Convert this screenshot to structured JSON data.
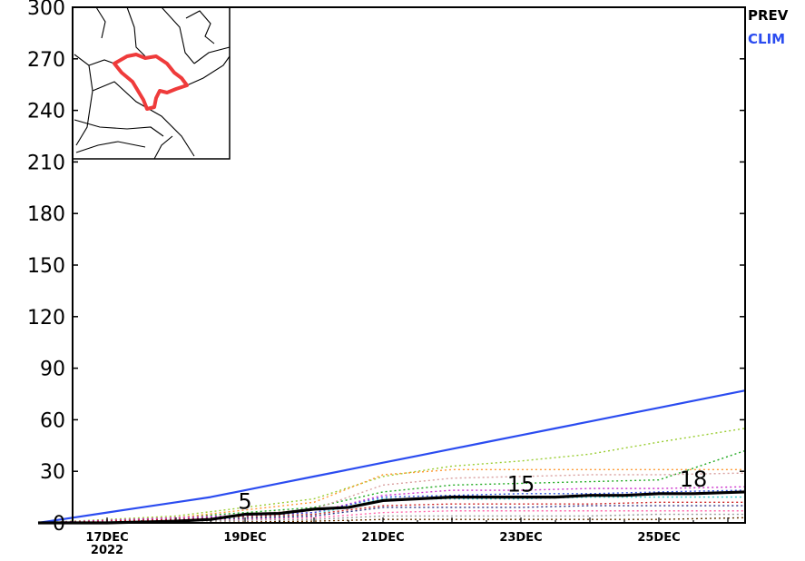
{
  "chart_data": {
    "type": "line",
    "title": "",
    "xlabel": "",
    "ylabel": "",
    "ylim": [
      0,
      300
    ],
    "yticks": [
      0,
      30,
      60,
      90,
      120,
      150,
      180,
      210,
      240,
      270,
      300
    ],
    "x_range": [
      "16DEC 12Z",
      "26DEC 06Z"
    ],
    "x_tick_labels": [
      {
        "x": "17DEC",
        "label": "17DEC",
        "sublabel": "2022"
      },
      {
        "x": "19DEC",
        "label": "19DEC"
      },
      {
        "x": "21DEC",
        "label": "21DEC"
      },
      {
        "x": "23DEC",
        "label": "23DEC"
      },
      {
        "x": "25DEC",
        "label": "25DEC"
      }
    ],
    "legend": {
      "placement": "top-right",
      "entries": [
        {
          "label": "PREV",
          "color": "#000000"
        },
        {
          "label": "CLIM",
          "color": "#2b4cf0"
        }
      ]
    },
    "inset_map": {
      "placement": "top-left",
      "highlight_color": "#ef3b3b",
      "description_region": "basin outline"
    },
    "series": [
      {
        "name": "PREV",
        "color": "#000000",
        "style": "solid",
        "x": [
          "16DEC",
          "17DEC",
          "17DEC 12Z",
          "18DEC",
          "18DEC 12Z",
          "19DEC",
          "19DEC 12Z",
          "20DEC",
          "20DEC 12Z",
          "21DEC",
          "21DEC 12Z",
          "22DEC",
          "22DEC 12Z",
          "23DEC",
          "23DEC 12Z",
          "24DEC",
          "24DEC 12Z",
          "25DEC",
          "25DEC 12Z",
          "26DEC 06Z"
        ],
        "values": [
          0,
          0,
          0.5,
          1,
          2,
          5,
          5.5,
          8,
          9,
          13,
          14,
          15,
          15,
          15,
          15,
          16,
          16,
          17,
          17,
          18
        ]
      },
      {
        "name": "CLIM",
        "color": "#2b4cf0",
        "style": "solid",
        "x": [
          "16DEC",
          "16DEC 12Z",
          "17DEC",
          "17DEC 12Z",
          "18DEC",
          "18DEC 12Z",
          "19DEC",
          "19DEC 12Z",
          "20DEC",
          "20DEC 12Z",
          "21DEC",
          "21DEC 12Z",
          "22DEC",
          "22DEC 12Z",
          "23DEC",
          "23DEC 12Z",
          "24DEC",
          "24DEC 12Z",
          "25DEC",
          "25DEC 12Z",
          "26DEC 06Z"
        ],
        "values": [
          0,
          3,
          6,
          9,
          12,
          15,
          19,
          23,
          27,
          31,
          35,
          39,
          43,
          47,
          51,
          55,
          59,
          63,
          67,
          71,
          77
        ]
      }
    ],
    "ensemble_members": [
      {
        "color": "#9acd32",
        "x": [
          "16DEC",
          "18DEC",
          "20DEC",
          "21DEC",
          "22DEC",
          "23DEC",
          "24DEC",
          "25DEC",
          "26DEC 06Z"
        ],
        "values": [
          0,
          4,
          14,
          27,
          33,
          36,
          40,
          47,
          55
        ]
      },
      {
        "color": "#22aa22",
        "x": [
          "16DEC",
          "18DEC",
          "20DEC",
          "21DEC",
          "22DEC",
          "23DEC",
          "24DEC",
          "25DEC",
          "26DEC 06Z"
        ],
        "values": [
          0,
          3,
          9,
          18,
          22,
          23,
          24,
          25,
          42
        ]
      },
      {
        "color": "#ff9933",
        "x": [
          "16DEC",
          "18DEC",
          "20DEC",
          "21DEC",
          "22DEC",
          "23DEC",
          "24DEC",
          "25DEC",
          "26DEC 06Z"
        ],
        "values": [
          0,
          3,
          12,
          28,
          31,
          31,
          31,
          31,
          31
        ]
      },
      {
        "color": "#d9a0a0",
        "x": [
          "16DEC",
          "18DEC",
          "20DEC",
          "21DEC",
          "22DEC",
          "23DEC",
          "24DEC",
          "25DEC",
          "26DEC 06Z"
        ],
        "values": [
          0,
          2,
          8,
          22,
          26,
          27,
          28,
          28,
          29
        ]
      },
      {
        "color": "#cc33cc",
        "x": [
          "16DEC",
          "18DEC",
          "20DEC",
          "21DEC",
          "22DEC",
          "23DEC",
          "24DEC",
          "25DEC",
          "26DEC 06Z"
        ],
        "values": [
          0,
          3,
          6,
          16,
          19,
          19,
          20,
          20,
          21
        ]
      },
      {
        "color": "#3355dd",
        "x": [
          "16DEC",
          "18DEC",
          "20DEC",
          "21DEC",
          "22DEC",
          "23DEC",
          "24DEC",
          "25DEC",
          "26DEC 06Z"
        ],
        "values": [
          0,
          2,
          6,
          15,
          16,
          17,
          17,
          18,
          19
        ]
      },
      {
        "color": "#33cccc",
        "x": [
          "16DEC",
          "18DEC",
          "20DEC",
          "21DEC",
          "22DEC",
          "23DEC",
          "24DEC",
          "25DEC",
          "26DEC 06Z"
        ],
        "values": [
          0,
          1,
          5,
          14,
          14,
          14,
          15,
          15,
          15
        ]
      },
      {
        "color": "#cc2222",
        "x": [
          "16DEC",
          "18DEC",
          "20DEC",
          "21DEC",
          "22DEC",
          "23DEC",
          "24DEC",
          "25DEC",
          "26DEC 06Z"
        ],
        "values": [
          0,
          2,
          5,
          10,
          11,
          11,
          11,
          12,
          12
        ]
      },
      {
        "color": "#2b2b80",
        "x": [
          "16DEC",
          "18DEC",
          "20DEC",
          "21DEC",
          "22DEC",
          "23DEC",
          "24DEC",
          "25DEC",
          "26DEC 06Z"
        ],
        "values": [
          0,
          1,
          4,
          9,
          9,
          9,
          10,
          10,
          10
        ]
      },
      {
        "color": "#ff66aa",
        "x": [
          "16DEC",
          "18DEC",
          "20DEC",
          "21DEC",
          "22DEC",
          "23DEC",
          "24DEC",
          "25DEC",
          "26DEC 06Z"
        ],
        "values": [
          0,
          1,
          3,
          6,
          7,
          7,
          7,
          7,
          7
        ]
      },
      {
        "color": "#999999",
        "x": [
          "16DEC",
          "18DEC",
          "20DEC",
          "21DEC",
          "22DEC",
          "23DEC",
          "24DEC",
          "25DEC",
          "26DEC 06Z"
        ],
        "values": [
          0,
          1,
          2,
          4,
          4,
          4,
          4,
          5,
          5
        ]
      },
      {
        "color": "#663300",
        "x": [
          "16DEC",
          "18DEC",
          "20DEC",
          "21DEC",
          "22DEC",
          "23DEC",
          "24DEC",
          "25DEC",
          "26DEC 06Z"
        ],
        "values": [
          0,
          0,
          1,
          2,
          2,
          2,
          2,
          2,
          3
        ]
      }
    ],
    "annotations": [
      {
        "text": "5",
        "x": "19DEC",
        "y": 5
      },
      {
        "text": "15",
        "x": "23DEC",
        "y": 15
      },
      {
        "text": "18",
        "x": "25DEC 12Z",
        "y": 18
      }
    ]
  }
}
